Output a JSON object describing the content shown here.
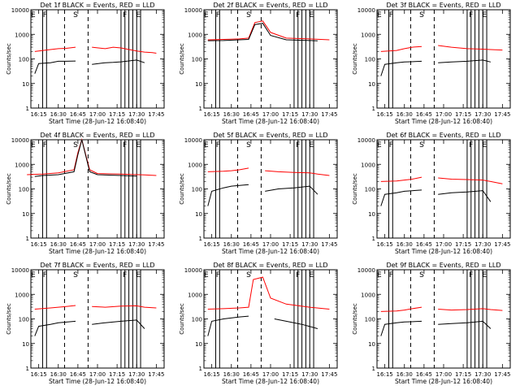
{
  "figure": {
    "ylabel": "Counts/sec",
    "xlabel": "Start Time (28-Jun-12 16:08:40)"
  },
  "chart_data": [
    {
      "type": "line",
      "title": "Det 1f BLACK = Events, RED = LLD",
      "xlabel": "Start Time (28-Jun-12 16:08:40)",
      "ylabel": "Counts/sec",
      "x_ticks": [
        "16:15",
        "16:30",
        "16:45",
        "17:00",
        "17:15",
        "17:30",
        "17:45"
      ],
      "y_ticks": [
        "1",
        "10",
        "100",
        "1000",
        "10000"
      ],
      "y_scale": "log",
      "ylim": [
        1,
        10000
      ],
      "markers": [
        "E",
        "F",
        "S",
        "F",
        "E"
      ],
      "series": [
        {
          "color": "#ff0000",
          "label": "RED = LLD",
          "segments": [
            {
              "t": [
                16.2,
                16.4,
                16.5,
                16.6,
                16.72
              ],
              "y": [
                200,
                240,
                260,
                270,
                300
              ]
            },
            {
              "t": [
                16.93,
                17.1,
                17.2,
                17.3,
                17.5,
                17.6,
                17.7,
                17.75
              ],
              "y": [
                300,
                260,
                300,
                280,
                210,
                190,
                180,
                170
              ]
            }
          ]
        },
        {
          "color": "#000000",
          "label": "BLACK = Events",
          "segments": [
            {
              "t": [
                16.2,
                16.25,
                16.4,
                16.5,
                16.6,
                16.72
              ],
              "y": [
                25,
                65,
                70,
                80,
                80,
                82
              ]
            },
            {
              "t": [
                16.93,
                17.1,
                17.2,
                17.3,
                17.5,
                17.6
              ],
              "y": [
                60,
                70,
                72,
                76,
                90,
                70
              ]
            }
          ]
        }
      ]
    },
    {
      "type": "line",
      "title": "Det 2f BLACK = Events, RED = LLD",
      "xlabel": "Start Time (28-Jun-12 16:08:40)",
      "ylabel": "Counts/sec",
      "x_ticks": [
        "16:15",
        "16:30",
        "16:45",
        "17:00",
        "17:15",
        "17:30",
        "17:45"
      ],
      "y_ticks": [
        "1",
        "10",
        "100",
        "1000",
        "10000"
      ],
      "y_scale": "log",
      "ylim": [
        1,
        10000
      ],
      "markers": [
        "E",
        "F",
        "S",
        "F",
        "E"
      ],
      "series": [
        {
          "color": "#ff0000",
          "label": "RED = LLD",
          "segments": [
            {
              "t": [
                16.2,
                16.4,
                16.6,
                16.72,
                16.8,
                16.9,
                17.0,
                17.2,
                17.5,
                17.75
              ],
              "y": [
                600,
                620,
                650,
                700,
                3000,
                3500,
                1200,
                700,
                650,
                600
              ]
            }
          ]
        },
        {
          "color": "#000000",
          "label": "BLACK = Events",
          "segments": [
            {
              "t": [
                16.2,
                16.4,
                16.6,
                16.72,
                16.8,
                16.9,
                17.0,
                17.2,
                17.5,
                17.6
              ],
              "y": [
                550,
                560,
                600,
                620,
                2500,
                2800,
                900,
                600,
                560,
                540
              ]
            }
          ]
        }
      ]
    },
    {
      "type": "line",
      "title": "Det 3f BLACK = Events, RED = LLD",
      "xlabel": "Start Time (28-Jun-12 16:08:40)",
      "ylabel": "Counts/sec",
      "x_ticks": [
        "16:15",
        "16:30",
        "16:45",
        "17:00",
        "17:15",
        "17:30",
        "17:45"
      ],
      "y_ticks": [
        "1",
        "10",
        "100",
        "1000",
        "10000"
      ],
      "y_scale": "log",
      "ylim": [
        1,
        10000
      ],
      "markers": [
        "E",
        "F",
        "S",
        "F",
        "E"
      ],
      "series": [
        {
          "color": "#ff0000",
          "label": "RED = LLD",
          "segments": [
            {
              "t": [
                16.2,
                16.4,
                16.5,
                16.6,
                16.72
              ],
              "y": [
                200,
                220,
                260,
                300,
                320
              ]
            },
            {
              "t": [
                16.93,
                17.1,
                17.3,
                17.5,
                17.6,
                17.75
              ],
              "y": [
                350,
                300,
                260,
                250,
                240,
                230
              ]
            }
          ]
        },
        {
          "color": "#000000",
          "label": "BLACK = Events",
          "segments": [
            {
              "t": [
                16.2,
                16.25,
                16.4,
                16.5,
                16.72
              ],
              "y": [
                20,
                60,
                70,
                75,
                80
              ]
            },
            {
              "t": [
                16.93,
                17.1,
                17.3,
                17.5,
                17.6
              ],
              "y": [
                70,
                75,
                80,
                90,
                75
              ]
            }
          ]
        }
      ]
    },
    {
      "type": "line",
      "title": "Det 4f BLACK = Events, RED = LLD",
      "xlabel": "Start Time (28-Jun-12 16:08:40)",
      "ylabel": "Counts/sec",
      "x_ticks": [
        "16:15",
        "16:30",
        "16:45",
        "17:00",
        "17:15",
        "17:30",
        "17:45"
      ],
      "y_ticks": [
        "1",
        "10",
        "100",
        "1000",
        "10000"
      ],
      "y_scale": "log",
      "ylim": [
        1,
        10000
      ],
      "markers": [
        "E",
        "F",
        "S",
        "F",
        "E"
      ],
      "series": [
        {
          "color": "#ff0000",
          "label": "RED = LLD",
          "segments": [
            {
              "t": [
                16.1,
                16.3,
                16.5,
                16.7,
                16.75,
                16.8,
                16.9,
                17.0,
                17.3,
                17.6,
                17.75
              ],
              "y": [
                380,
                400,
                450,
                600,
                3000,
                12000,
                600,
                420,
                400,
                370,
                350
              ]
            }
          ]
        },
        {
          "color": "#000000",
          "label": "BLACK = Events",
          "segments": [
            {
              "t": [
                16.2,
                16.3,
                16.5,
                16.7,
                16.75,
                16.8,
                16.9,
                17.0,
                17.3,
                17.5
              ],
              "y": [
                320,
                350,
                380,
                500,
                2500,
                10000,
                500,
                380,
                350,
                330
              ]
            }
          ]
        }
      ]
    },
    {
      "type": "line",
      "title": "Det 5f BLACK = Events, RED = LLD",
      "xlabel": "Start Time (28-Jun-12 16:08:40)",
      "ylabel": "Counts/sec",
      "x_ticks": [
        "16:15",
        "16:30",
        "16:45",
        "17:00",
        "17:15",
        "17:30",
        "17:45"
      ],
      "y_ticks": [
        "1",
        "10",
        "100",
        "1000",
        "10000"
      ],
      "y_scale": "log",
      "ylim": [
        1,
        10000
      ],
      "markers": [
        "E",
        "F",
        "S",
        "F",
        "E"
      ],
      "series": [
        {
          "color": "#ff0000",
          "label": "RED = LLD",
          "segments": [
            {
              "t": [
                16.2,
                16.4,
                16.5,
                16.6,
                16.72
              ],
              "y": [
                500,
                520,
                550,
                600,
                700
              ]
            },
            {
              "t": [
                16.93,
                17.1,
                17.3,
                17.5,
                17.6,
                17.75
              ],
              "y": [
                550,
                500,
                470,
                450,
                400,
                350
              ]
            }
          ]
        },
        {
          "color": "#000000",
          "label": "BLACK = Events",
          "segments": [
            {
              "t": [
                16.2,
                16.25,
                16.4,
                16.5,
                16.72
              ],
              "y": [
                20,
                80,
                110,
                130,
                150
              ]
            },
            {
              "t": [
                16.93,
                17.1,
                17.3,
                17.5,
                17.6
              ],
              "y": [
                80,
                100,
                110,
                130,
                60
              ]
            }
          ]
        }
      ]
    },
    {
      "type": "line",
      "title": "Det 6f BLACK = Events, RED = LLD",
      "xlabel": "Start Time (28-Jun-12 16:08:40)",
      "ylabel": "Counts/sec",
      "x_ticks": [
        "16:15",
        "16:30",
        "16:45",
        "17:00",
        "17:15",
        "17:30",
        "17:45"
      ],
      "y_ticks": [
        "1",
        "10",
        "100",
        "1000",
        "10000"
      ],
      "y_scale": "log",
      "ylim": [
        1,
        10000
      ],
      "markers": [
        "E",
        "F",
        "S",
        "F",
        "E"
      ],
      "series": [
        {
          "color": "#ff0000",
          "label": "RED = LLD",
          "segments": [
            {
              "t": [
                16.2,
                16.4,
                16.5,
                16.6,
                16.72
              ],
              "y": [
                200,
                210,
                230,
                250,
                300
              ]
            },
            {
              "t": [
                16.93,
                17.1,
                17.3,
                17.5,
                17.6,
                17.75
              ],
              "y": [
                280,
                250,
                240,
                230,
                200,
                160
              ]
            }
          ]
        },
        {
          "color": "#000000",
          "label": "BLACK = Events",
          "segments": [
            {
              "t": [
                16.2,
                16.25,
                16.4,
                16.5,
                16.72
              ],
              "y": [
                20,
                60,
                70,
                80,
                90
              ]
            },
            {
              "t": [
                16.93,
                17.1,
                17.3,
                17.5,
                17.6
              ],
              "y": [
                60,
                70,
                75,
                85,
                30
              ]
            }
          ]
        }
      ]
    },
    {
      "type": "line",
      "title": "Det 7f BLACK = Events, RED = LLD",
      "xlabel": "Start Time (28-Jun-12 16:08:40)",
      "ylabel": "Counts/sec",
      "x_ticks": [
        "16:15",
        "16:30",
        "16:45",
        "17:00",
        "17:15",
        "17:30",
        "17:45"
      ],
      "y_ticks": [
        "1",
        "10",
        "100",
        "1000",
        "10000"
      ],
      "y_scale": "log",
      "ylim": [
        1,
        10000
      ],
      "markers": [
        "E",
        "F",
        "S",
        "F",
        "E"
      ],
      "series": [
        {
          "color": "#ff0000",
          "label": "RED = LLD",
          "segments": [
            {
              "t": [
                16.2,
                16.4,
                16.5,
                16.6,
                16.72
              ],
              "y": [
                250,
                280,
                300,
                320,
                350
              ]
            },
            {
              "t": [
                16.93,
                17.1,
                17.3,
                17.5,
                17.6,
                17.75
              ],
              "y": [
                320,
                300,
                330,
                340,
                300,
                280
              ]
            }
          ]
        },
        {
          "color": "#000000",
          "label": "BLACK = Events",
          "segments": [
            {
              "t": [
                16.2,
                16.25,
                16.4,
                16.5,
                16.72
              ],
              "y": [
                20,
                50,
                60,
                70,
                80
              ]
            },
            {
              "t": [
                16.93,
                17.1,
                17.3,
                17.5,
                17.6
              ],
              "y": [
                60,
                70,
                80,
                90,
                40
              ]
            }
          ]
        }
      ]
    },
    {
      "type": "line",
      "title": "Det 8f BLACK = Events, RED = LLD",
      "xlabel": "Start Time (28-Jun-12 16:08:40)",
      "ylabel": "Counts/sec",
      "x_ticks": [
        "16:15",
        "16:30",
        "16:45",
        "17:00",
        "17:15",
        "17:30",
        "17:45"
      ],
      "y_ticks": [
        "1",
        "10",
        "100",
        "1000",
        "10000"
      ],
      "y_scale": "log",
      "ylim": [
        1,
        10000
      ],
      "markers": [
        "E",
        "F",
        "S",
        "F",
        "E"
      ],
      "series": [
        {
          "color": "#ff0000",
          "label": "RED = LLD",
          "segments": [
            {
              "t": [
                16.2,
                16.4,
                16.6,
                16.72,
                16.78,
                16.9,
                17.0,
                17.2,
                17.5,
                17.75
              ],
              "y": [
                250,
                260,
                280,
                300,
                4000,
                5000,
                700,
                400,
                300,
                250
              ]
            }
          ]
        },
        {
          "color": "#000000",
          "label": "BLACK = Events",
          "segments": [
            {
              "t": [
                16.2,
                16.25,
                16.4,
                16.6,
                16.72
              ],
              "y": [
                20,
                80,
                100,
                120,
                130
              ]
            },
            {
              "t": [
                17.05,
                17.2,
                17.4,
                17.6
              ],
              "y": [
                100,
                80,
                60,
                40
              ]
            }
          ]
        }
      ]
    },
    {
      "type": "line",
      "title": "Det 9f BLACK = Events, RED = LLD",
      "xlabel": "Start Time (28-Jun-12 16:08:40)",
      "ylabel": "Counts/sec",
      "x_ticks": [
        "16:15",
        "16:30",
        "16:45",
        "17:00",
        "17:15",
        "17:30",
        "17:45"
      ],
      "y_ticks": [
        "1",
        "10",
        "100",
        "1000",
        "10000"
      ],
      "y_scale": "log",
      "ylim": [
        1,
        10000
      ],
      "markers": [
        "E",
        "F",
        "S",
        "F",
        "E"
      ],
      "series": [
        {
          "color": "#ff0000",
          "label": "RED = LLD",
          "segments": [
            {
              "t": [
                16.2,
                16.4,
                16.5,
                16.6,
                16.72
              ],
              "y": [
                200,
                210,
                230,
                260,
                300
              ]
            },
            {
              "t": [
                16.93,
                17.1,
                17.3,
                17.5,
                17.6,
                17.75
              ],
              "y": [
                250,
                230,
                240,
                260,
                240,
                220
              ]
            }
          ]
        },
        {
          "color": "#000000",
          "label": "BLACK = Events",
          "segments": [
            {
              "t": [
                16.2,
                16.25,
                16.4,
                16.5,
                16.72
              ],
              "y": [
                20,
                60,
                70,
                75,
                80
              ]
            },
            {
              "t": [
                16.93,
                17.1,
                17.3,
                17.5,
                17.6
              ],
              "y": [
                60,
                65,
                70,
                80,
                40
              ]
            }
          ]
        }
      ]
    }
  ]
}
